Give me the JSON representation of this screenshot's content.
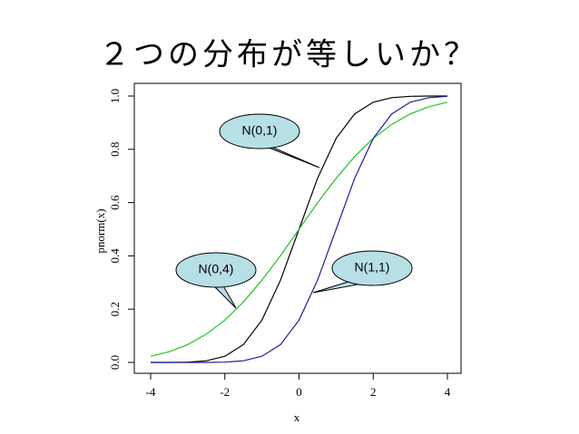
{
  "chart_data": {
    "type": "line",
    "title": "２つの分布が等しいか？",
    "x_label": "x",
    "y_label": "pnorm(x)",
    "x": [
      -4,
      -3.5,
      -3,
      -2.5,
      -2,
      -1.5,
      -1,
      -0.5,
      0,
      0.5,
      1,
      1.5,
      2,
      2.5,
      3,
      3.5,
      4
    ],
    "series": [
      {
        "name": "N(0,1)",
        "color": "#000000",
        "values": [
          0,
          0,
          0.001,
          0.006,
          0.023,
          0.067,
          0.159,
          0.309,
          0.5,
          0.691,
          0.841,
          0.933,
          0.977,
          0.994,
          0.999,
          1,
          1
        ]
      },
      {
        "name": "N(0,4)",
        "color": "#22c522",
        "values": [
          0.023,
          0.04,
          0.067,
          0.106,
          0.159,
          0.227,
          0.309,
          0.401,
          0.5,
          0.599,
          0.691,
          0.773,
          0.841,
          0.894,
          0.933,
          0.96,
          0.977
        ]
      },
      {
        "name": "N(1,1)",
        "color": "#1c1c99",
        "values": [
          0,
          0,
          0,
          0,
          0.001,
          0.006,
          0.023,
          0.067,
          0.159,
          0.309,
          0.5,
          0.691,
          0.841,
          0.933,
          0.977,
          0.994,
          0.999
        ]
      }
    ],
    "xlim": [
      -4,
      4
    ],
    "ylim": [
      0,
      1
    ],
    "xticks": [
      -4,
      -2,
      0,
      2,
      4
    ],
    "yticks": [
      {
        "value": 0,
        "label": "0.0"
      },
      0.2,
      0.4,
      0.6,
      0.8,
      {
        "value": 1,
        "label": "1.0"
      }
    ]
  }
}
